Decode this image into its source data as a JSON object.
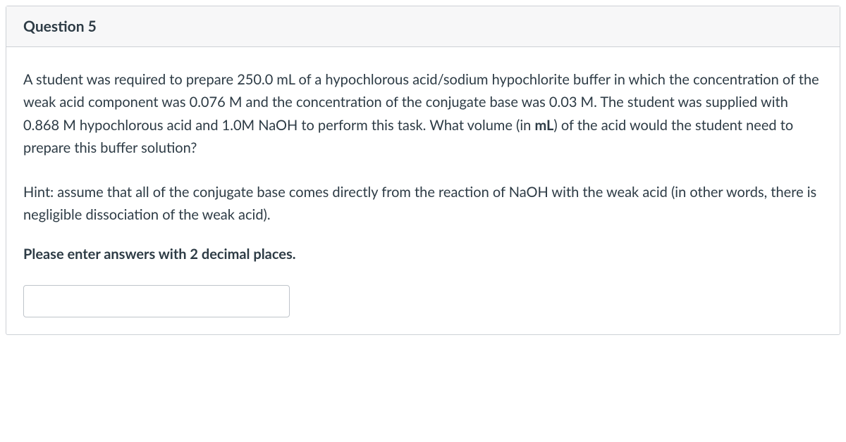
{
  "colors": {
    "border": "#cdd1d6",
    "header_bg": "#f7f7f8",
    "text": "#2d3b45",
    "input_border": "#bfc4ca",
    "background": "#ffffff"
  },
  "typography": {
    "title_fontsize": 21,
    "body_fontsize": 20,
    "title_weight": 700,
    "body_line_height": 1.62
  },
  "question": {
    "title": "Question 5",
    "prompt_part1": "A student was required to prepare 250.0 mL of a hypochlorous acid/sodium hypochlorite buffer in which the concentration of the weak acid component was 0.076 M and the concentration of the conjugate base was 0.03 M. The student was supplied with 0.868 M hypochlorous acid and 1.0M NaOH to perform this task. What volume (in ",
    "prompt_unit": "mL",
    "prompt_part2": ") of the acid would the student need to prepare this buffer solution?",
    "hint": "Hint: assume that all of the conjugate base comes directly from the reaction of NaOH with the weak acid (in other words, there is negligible dissociation of the weak acid).",
    "instruction": "Please enter answers with 2 decimal places.",
    "answer_value": ""
  }
}
